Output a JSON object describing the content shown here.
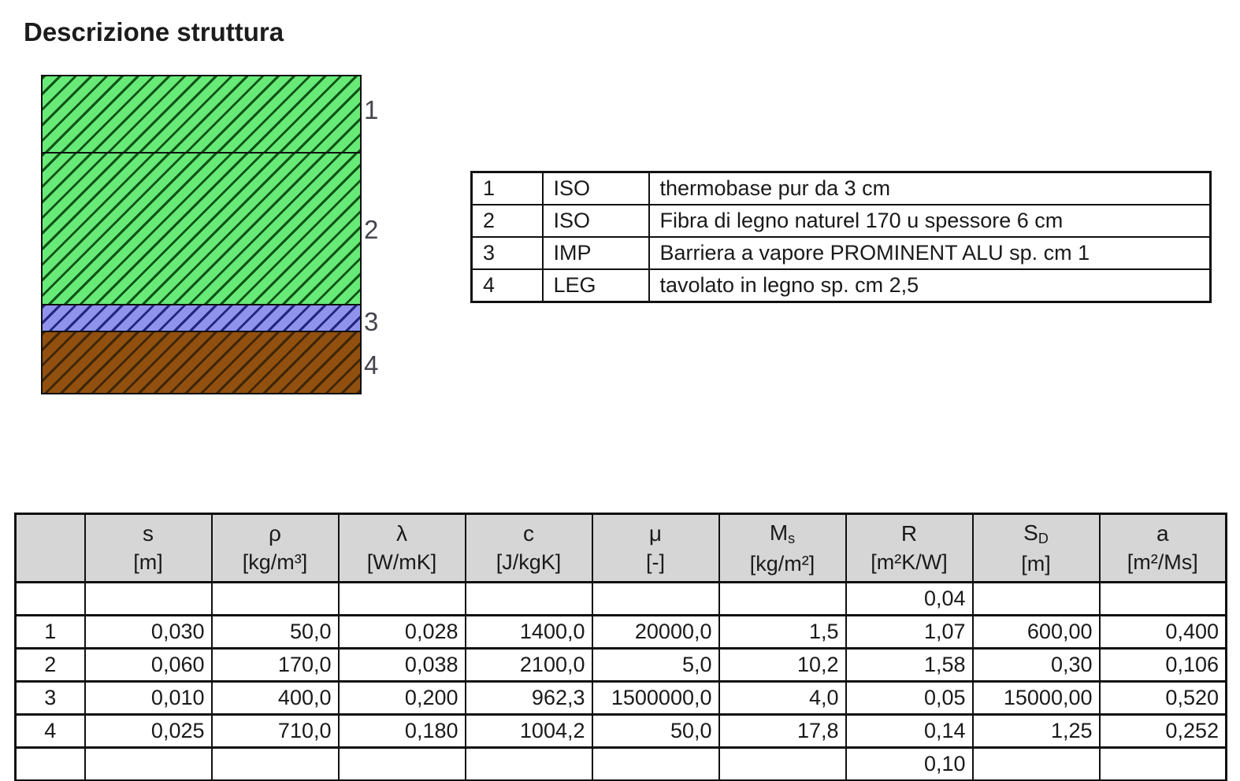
{
  "page_title": "Descrizione struttura",
  "structure_diagram": {
    "layers": [
      {
        "label": "1",
        "material": "ISO",
        "fill_color": "#68ea78",
        "hatch_color": "#0f5416"
      },
      {
        "label": "2",
        "material": "ISO",
        "fill_color": "#68ea78",
        "hatch_color": "#0f5416"
      },
      {
        "label": "3",
        "material": "IMP",
        "fill_color": "#8f93ec",
        "hatch_color": "#23267d"
      },
      {
        "label": "4",
        "material": "LEG",
        "fill_color": "#91500f",
        "hatch_color": "#3f2606"
      }
    ]
  },
  "legend_table": {
    "rows": [
      {
        "num": "1",
        "type": "ISO",
        "description": "thermobase pur da 3 cm"
      },
      {
        "num": "2",
        "type": "ISO",
        "description": "Fibra di legno naturel 170 u spessore 6 cm"
      },
      {
        "num": "3",
        "type": "IMP",
        "description": "Barriera a vapore PROMINENT ALU sp. cm 1"
      },
      {
        "num": "4",
        "type": "LEG",
        "description": "tavolato in legno sp. cm 2,5"
      }
    ]
  },
  "properties_table": {
    "columns": [
      {
        "symbol": "",
        "subscript": "",
        "unit": ""
      },
      {
        "symbol": "s",
        "subscript": "",
        "unit": "[m]"
      },
      {
        "symbol": "ρ",
        "subscript": "",
        "unit": "[kg/m³]"
      },
      {
        "symbol": "λ",
        "subscript": "",
        "unit": "[W/mK]"
      },
      {
        "symbol": "c",
        "subscript": "",
        "unit": "[J/kgK]"
      },
      {
        "symbol": "μ",
        "subscript": "",
        "unit": "[-]"
      },
      {
        "symbol": "M",
        "subscript": "s",
        "unit": "[kg/m²]"
      },
      {
        "symbol": "R",
        "subscript": "",
        "unit": "[m²K/W]"
      },
      {
        "symbol": "S",
        "subscript": "D",
        "unit": "[m]"
      },
      {
        "symbol": "a",
        "subscript": "",
        "unit": "[m²/Ms]"
      }
    ],
    "rows": [
      [
        "",
        "",
        "",
        "",
        "",
        "",
        "",
        "0,04",
        "",
        ""
      ],
      [
        "1",
        "0,030",
        "50,0",
        "0,028",
        "1400,0",
        "20000,0",
        "1,5",
        "1,07",
        "600,00",
        "0,400"
      ],
      [
        "2",
        "0,060",
        "170,0",
        "0,038",
        "2100,0",
        "5,0",
        "10,2",
        "1,58",
        "0,30",
        "0,106"
      ],
      [
        "3",
        "0,010",
        "400,0",
        "0,200",
        "962,3",
        "1500000,0",
        "4,0",
        "0,05",
        "15000,00",
        "0,520"
      ],
      [
        "4",
        "0,025",
        "710,0",
        "0,180",
        "1004,2",
        "50,0",
        "17,8",
        "0,14",
        "1,25",
        "0,252"
      ],
      [
        "",
        "",
        "",
        "",
        "",
        "",
        "",
        "0,10",
        "",
        ""
      ]
    ]
  },
  "colors": {
    "header_background": "#d6d6d6",
    "table_border": "#111111",
    "text": "#1a1a1a",
    "diagram_label": "#45454e"
  }
}
